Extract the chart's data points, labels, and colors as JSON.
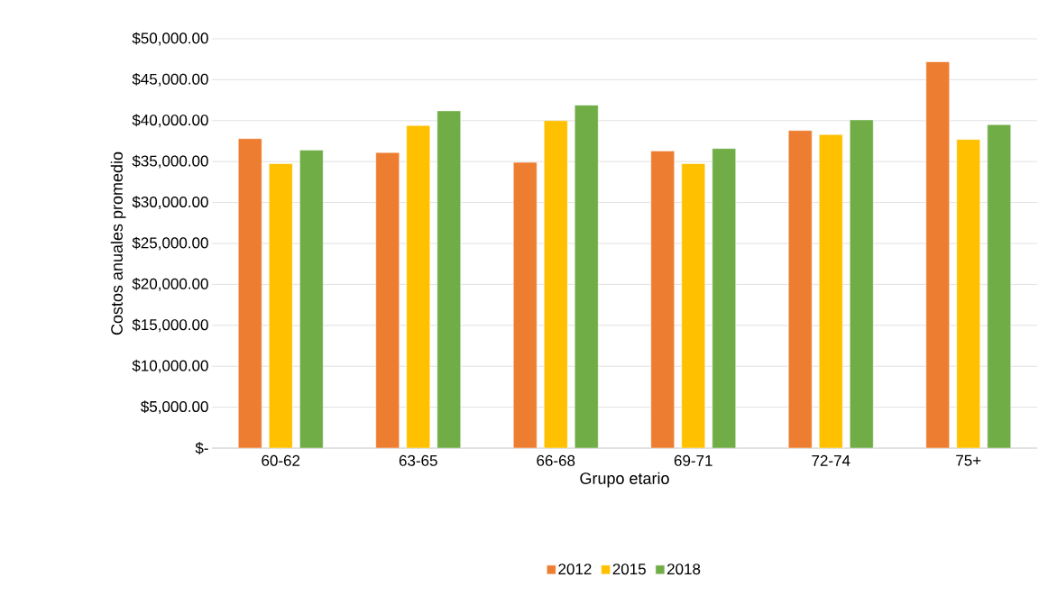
{
  "chart_data": {
    "type": "bar",
    "xlabel": "Grupo etario",
    "ylabel": "Costos anuales promedio",
    "categories": [
      "60-62",
      "63-65",
      "66-68",
      "69-71",
      "72-74",
      "75+"
    ],
    "series": [
      {
        "name": "2012",
        "color": "#ed7d31",
        "values": [
          37800,
          36100,
          34900,
          36300,
          38800,
          47200
        ]
      },
      {
        "name": "2015",
        "color": "#ffc000",
        "values": [
          34750,
          39400,
          40000,
          34750,
          38300,
          37700
        ]
      },
      {
        "name": "2018",
        "color": "#70ad47",
        "values": [
          36400,
          41200,
          41900,
          36600,
          40100,
          39500
        ]
      }
    ],
    "ylim": [
      0,
      50000
    ],
    "yticks": [
      {
        "value": 0,
        "label": "$-"
      },
      {
        "value": 5000,
        "label": "$5,000.00"
      },
      {
        "value": 10000,
        "label": "$10,000.00"
      },
      {
        "value": 15000,
        "label": "$15,000.00"
      },
      {
        "value": 20000,
        "label": "$20,000.00"
      },
      {
        "value": 25000,
        "label": "$25,000.00"
      },
      {
        "value": 30000,
        "label": "$30,000.00"
      },
      {
        "value": 35000,
        "label": "$35,000.00"
      },
      {
        "value": 40000,
        "label": "$40,000.00"
      },
      {
        "value": 45000,
        "label": "$45,000.00"
      },
      {
        "value": 50000,
        "label": "$50,000.00"
      }
    ],
    "grid": "y",
    "legend": "bottom"
  }
}
